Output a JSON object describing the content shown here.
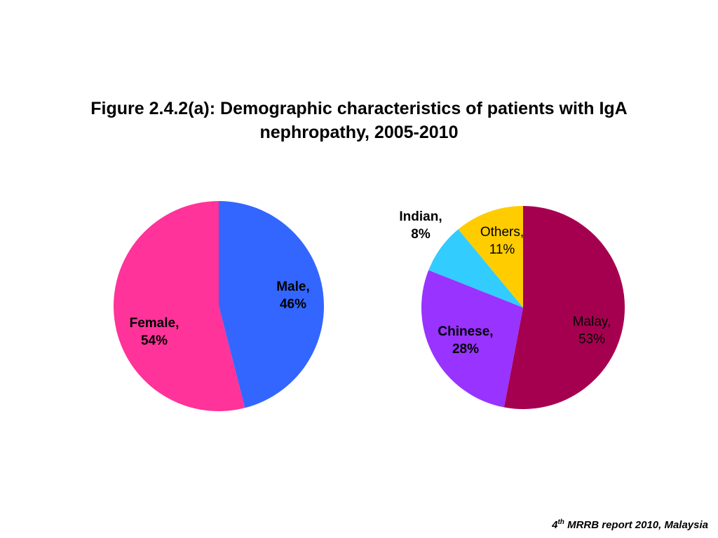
{
  "title": {
    "line1": "Figure 2.4.2(a): Demographic characteristics of patients with IgA",
    "line2": "nephropathy, 2005-2010"
  },
  "source": {
    "num": "4",
    "sup": "th",
    "text": " MRRB report 2010, Malaysia"
  },
  "chart_data": [
    {
      "type": "pie",
      "title": "",
      "slices": [
        {
          "label": "Male,",
          "pct": "46%",
          "value": 46,
          "color": "#3366ff"
        },
        {
          "label": "Female,",
          "pct": "54%",
          "value": 54,
          "color": "#ff3399"
        }
      ]
    },
    {
      "type": "pie",
      "title": "",
      "slices": [
        {
          "label": "Malay,",
          "pct": "53%",
          "value": 53,
          "color": "#a50050"
        },
        {
          "label": "Chinese,",
          "pct": "28%",
          "value": 28,
          "color": "#9933ff"
        },
        {
          "label": "Indian,",
          "pct": "8%",
          "value": 8,
          "color": "#33ccff"
        },
        {
          "label": "Others,",
          "pct": "11%",
          "value": 11,
          "color": "#ffcc00"
        }
      ]
    }
  ]
}
